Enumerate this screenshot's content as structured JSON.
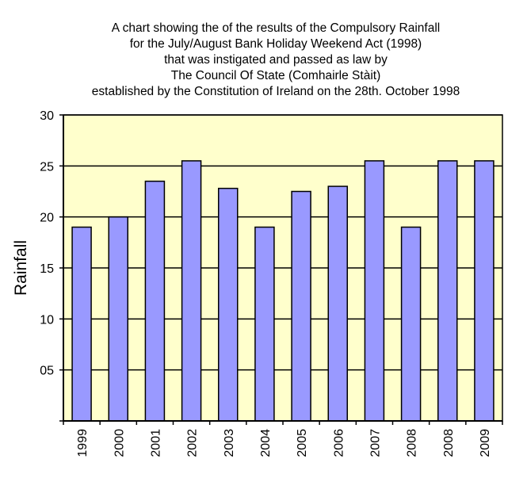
{
  "chart_data": {
    "type": "bar",
    "title_lines": [
      "A chart showing the of the results of the Compulsory Rainfall",
      "for the July/August Bank Holiday Weekend Act (1998)",
      "that was instigated and passed as law by",
      "The Council Of State (Comhairle Stàit)",
      "established by the Constitution of Ireland on the 28th. October 1998"
    ],
    "ylabel": "Rainfall",
    "xlabel": "",
    "ylim": [
      0,
      30
    ],
    "yticks": [
      {
        "value": 30,
        "label": "30"
      },
      {
        "value": 25,
        "label": "25"
      },
      {
        "value": 20,
        "label": "20"
      },
      {
        "value": 15,
        "label": "15"
      },
      {
        "value": 10,
        "label": "10"
      },
      {
        "value": 5,
        "label": "05"
      }
    ],
    "categories": [
      "1999",
      "2000",
      "2001",
      "2002",
      "2003",
      "2004",
      "2005",
      "2006",
      "2007",
      "2008",
      "2008",
      "2009"
    ],
    "values": [
      19,
      20,
      23.5,
      25.5,
      22.8,
      19,
      22.5,
      23,
      25.5,
      19,
      25.5,
      25.5
    ],
    "grid": true,
    "legend": "none",
    "colors": {
      "bar": "#9999ff",
      "bar_edge": "#000000",
      "plot_background": "#ffffcc",
      "gridline": "#000000"
    }
  }
}
